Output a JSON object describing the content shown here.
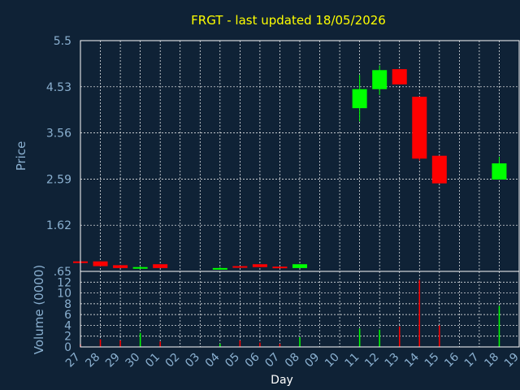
{
  "chart_data": [
    {
      "type": "candlestick",
      "title": "FRGT - last updated 18/05/2026",
      "ylabel": "Price",
      "ylim": [
        0.65,
        5.5
      ],
      "yticks": [
        "5.5",
        "4.53",
        "3.56",
        "2.59",
        "1.62",
        ".65"
      ],
      "grid": true,
      "colors": {
        "up": "#00ff00",
        "down": "#ff0000",
        "background": "#0f2236",
        "grid": "#ffffff"
      },
      "candles": [
        {
          "x": "27",
          "open": 0.86,
          "close": 0.84,
          "high": 0.86,
          "low": 0.84
        },
        {
          "x": "28",
          "open": 0.86,
          "close": 0.76,
          "high": 0.86,
          "low": 0.76
        },
        {
          "x": "29",
          "open": 0.78,
          "close": 0.72,
          "high": 0.78,
          "low": 0.72
        },
        {
          "x": "30",
          "open": 0.72,
          "close": 0.74,
          "high": 0.76,
          "low": 0.72
        },
        {
          "x": "01",
          "open": 0.8,
          "close": 0.72,
          "high": 0.8,
          "low": 0.72
        },
        {
          "x": "04",
          "open": 0.7,
          "close": 0.72,
          "high": 0.74,
          "low": 0.7
        },
        {
          "x": "05",
          "open": 0.76,
          "close": 0.74,
          "high": 0.76,
          "low": 0.74
        },
        {
          "x": "06",
          "open": 0.8,
          "close": 0.74,
          "high": 0.8,
          "low": 0.74
        },
        {
          "x": "07",
          "open": 0.75,
          "close": 0.72,
          "high": 0.75,
          "low": 0.72
        },
        {
          "x": "08",
          "open": 0.72,
          "close": 0.8,
          "high": 0.8,
          "low": 0.72
        },
        {
          "x": "11",
          "open": 4.08,
          "close": 4.48,
          "high": 4.78,
          "low": 3.8
        },
        {
          "x": "12",
          "open": 4.48,
          "close": 4.88,
          "high": 4.98,
          "low": 4.36
        },
        {
          "x": "13",
          "open": 4.9,
          "close": 4.58,
          "high": 4.9,
          "low": 4.58
        },
        {
          "x": "14",
          "open": 4.32,
          "close": 3.02,
          "high": 4.32,
          "low": 2.98
        },
        {
          "x": "15",
          "open": 3.08,
          "close": 2.5,
          "high": 3.08,
          "low": 2.5
        },
        {
          "x": "18",
          "open": 2.58,
          "close": 2.92,
          "high": 3.06,
          "low": 2.58
        }
      ]
    },
    {
      "type": "bar",
      "ylabel": "Volume (0000)",
      "xlabel": "Day",
      "ylim": [
        0,
        14
      ],
      "yticks": [
        "0",
        "2",
        "4",
        "6",
        "8",
        "10",
        "12"
      ],
      "categories": [
        "27",
        "28",
        "29",
        "30",
        "01",
        "02",
        "03",
        "04",
        "05",
        "06",
        "07",
        "08",
        "09",
        "10",
        "11",
        "12",
        "13",
        "14",
        "15",
        "16",
        "17",
        "18",
        "19"
      ],
      "bars": [
        {
          "x": "27",
          "value": 0.5,
          "color": "red"
        },
        {
          "x": "28",
          "value": 1.4,
          "color": "red"
        },
        {
          "x": "29",
          "value": 1.2,
          "color": "red"
        },
        {
          "x": "30",
          "value": 2.6,
          "color": "green"
        },
        {
          "x": "01",
          "value": 1.0,
          "color": "red"
        },
        {
          "x": "04",
          "value": 0.6,
          "color": "green"
        },
        {
          "x": "05",
          "value": 1.2,
          "color": "red"
        },
        {
          "x": "06",
          "value": 0.8,
          "color": "red"
        },
        {
          "x": "07",
          "value": 0.6,
          "color": "red"
        },
        {
          "x": "08",
          "value": 1.8,
          "color": "green"
        },
        {
          "x": "11",
          "value": 3.4,
          "color": "green"
        },
        {
          "x": "12",
          "value": 3.2,
          "color": "green"
        },
        {
          "x": "13",
          "value": 3.8,
          "color": "red"
        },
        {
          "x": "14",
          "value": 12.4,
          "color": "red"
        },
        {
          "x": "15",
          "value": 4.0,
          "color": "red"
        },
        {
          "x": "18",
          "value": 7.6,
          "color": "green"
        }
      ]
    }
  ]
}
